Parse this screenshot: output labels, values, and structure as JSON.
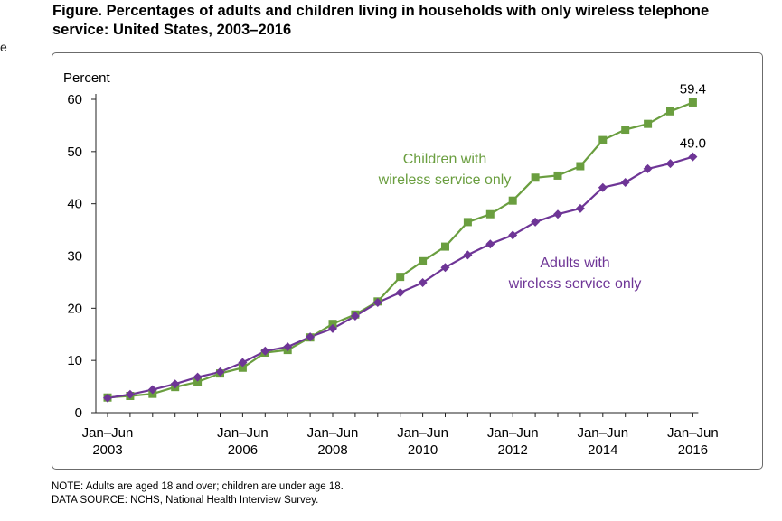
{
  "edge_fragment": "e",
  "figure_title": "Figure. Percentages of adults and children living in households with only wireless telephone service: United States, 2003–2016",
  "note": "NOTE: Adults are aged 18 and over; children are under age 18.",
  "data_source": "DATA SOURCE:  NCHS, National Health Interview Survey.",
  "chart_data": {
    "type": "line",
    "title": "Figure. Percentages of adults and children living in households with only wireless telephone service: United States, 2003–2016",
    "ylabel": "Percent",
    "xlabel": "",
    "ylim": [
      0,
      60
    ],
    "yticks": [
      0,
      10,
      20,
      30,
      40,
      50,
      60
    ],
    "x_tick_labels": [
      {
        "line1": "Jan–Jun",
        "line2": "2003",
        "period_index": 0
      },
      {
        "line1": "Jan–Jun",
        "line2": "2006",
        "period_index": 6
      },
      {
        "line1": "Jan–Jun",
        "line2": "2008",
        "period_index": 10
      },
      {
        "line1": "Jan–Jun",
        "line2": "2010",
        "period_index": 14
      },
      {
        "line1": "Jan–Jun",
        "line2": "2012",
        "period_index": 18
      },
      {
        "line1": "Jan–Jun",
        "line2": "2014",
        "period_index": 22
      },
      {
        "line1": "Jan–Jun",
        "line2": "2016",
        "period_index": 26
      }
    ],
    "grid": false,
    "series": [
      {
        "name": "Children with wireless service only",
        "label_lines": [
          "Children with",
          "wireless service only"
        ],
        "color": "#6a9e3f",
        "marker": "square",
        "end_label": "59.4",
        "values": [
          2.9,
          3.2,
          3.6,
          4.9,
          5.9,
          7.5,
          8.6,
          11.5,
          12.0,
          14.4,
          17.0,
          18.8,
          21.3,
          26.0,
          29.0,
          31.8,
          36.5,
          38.0,
          40.6,
          45.0,
          45.4,
          47.2,
          52.2,
          54.2,
          55.3,
          57.7,
          59.4
        ]
      },
      {
        "name": "Adults with wireless service only",
        "label_lines": [
          "Adults with",
          "wireless service only"
        ],
        "color": "#6e3596",
        "marker": "diamond",
        "end_label": "49.0",
        "values": [
          2.8,
          3.5,
          4.4,
          5.5,
          6.8,
          7.8,
          9.6,
          11.8,
          12.6,
          14.5,
          16.1,
          18.5,
          21.1,
          23.0,
          24.9,
          27.8,
          30.2,
          32.3,
          34.0,
          36.5,
          38.0,
          39.1,
          43.1,
          44.1,
          46.7,
          47.7,
          49.0
        ]
      }
    ]
  }
}
